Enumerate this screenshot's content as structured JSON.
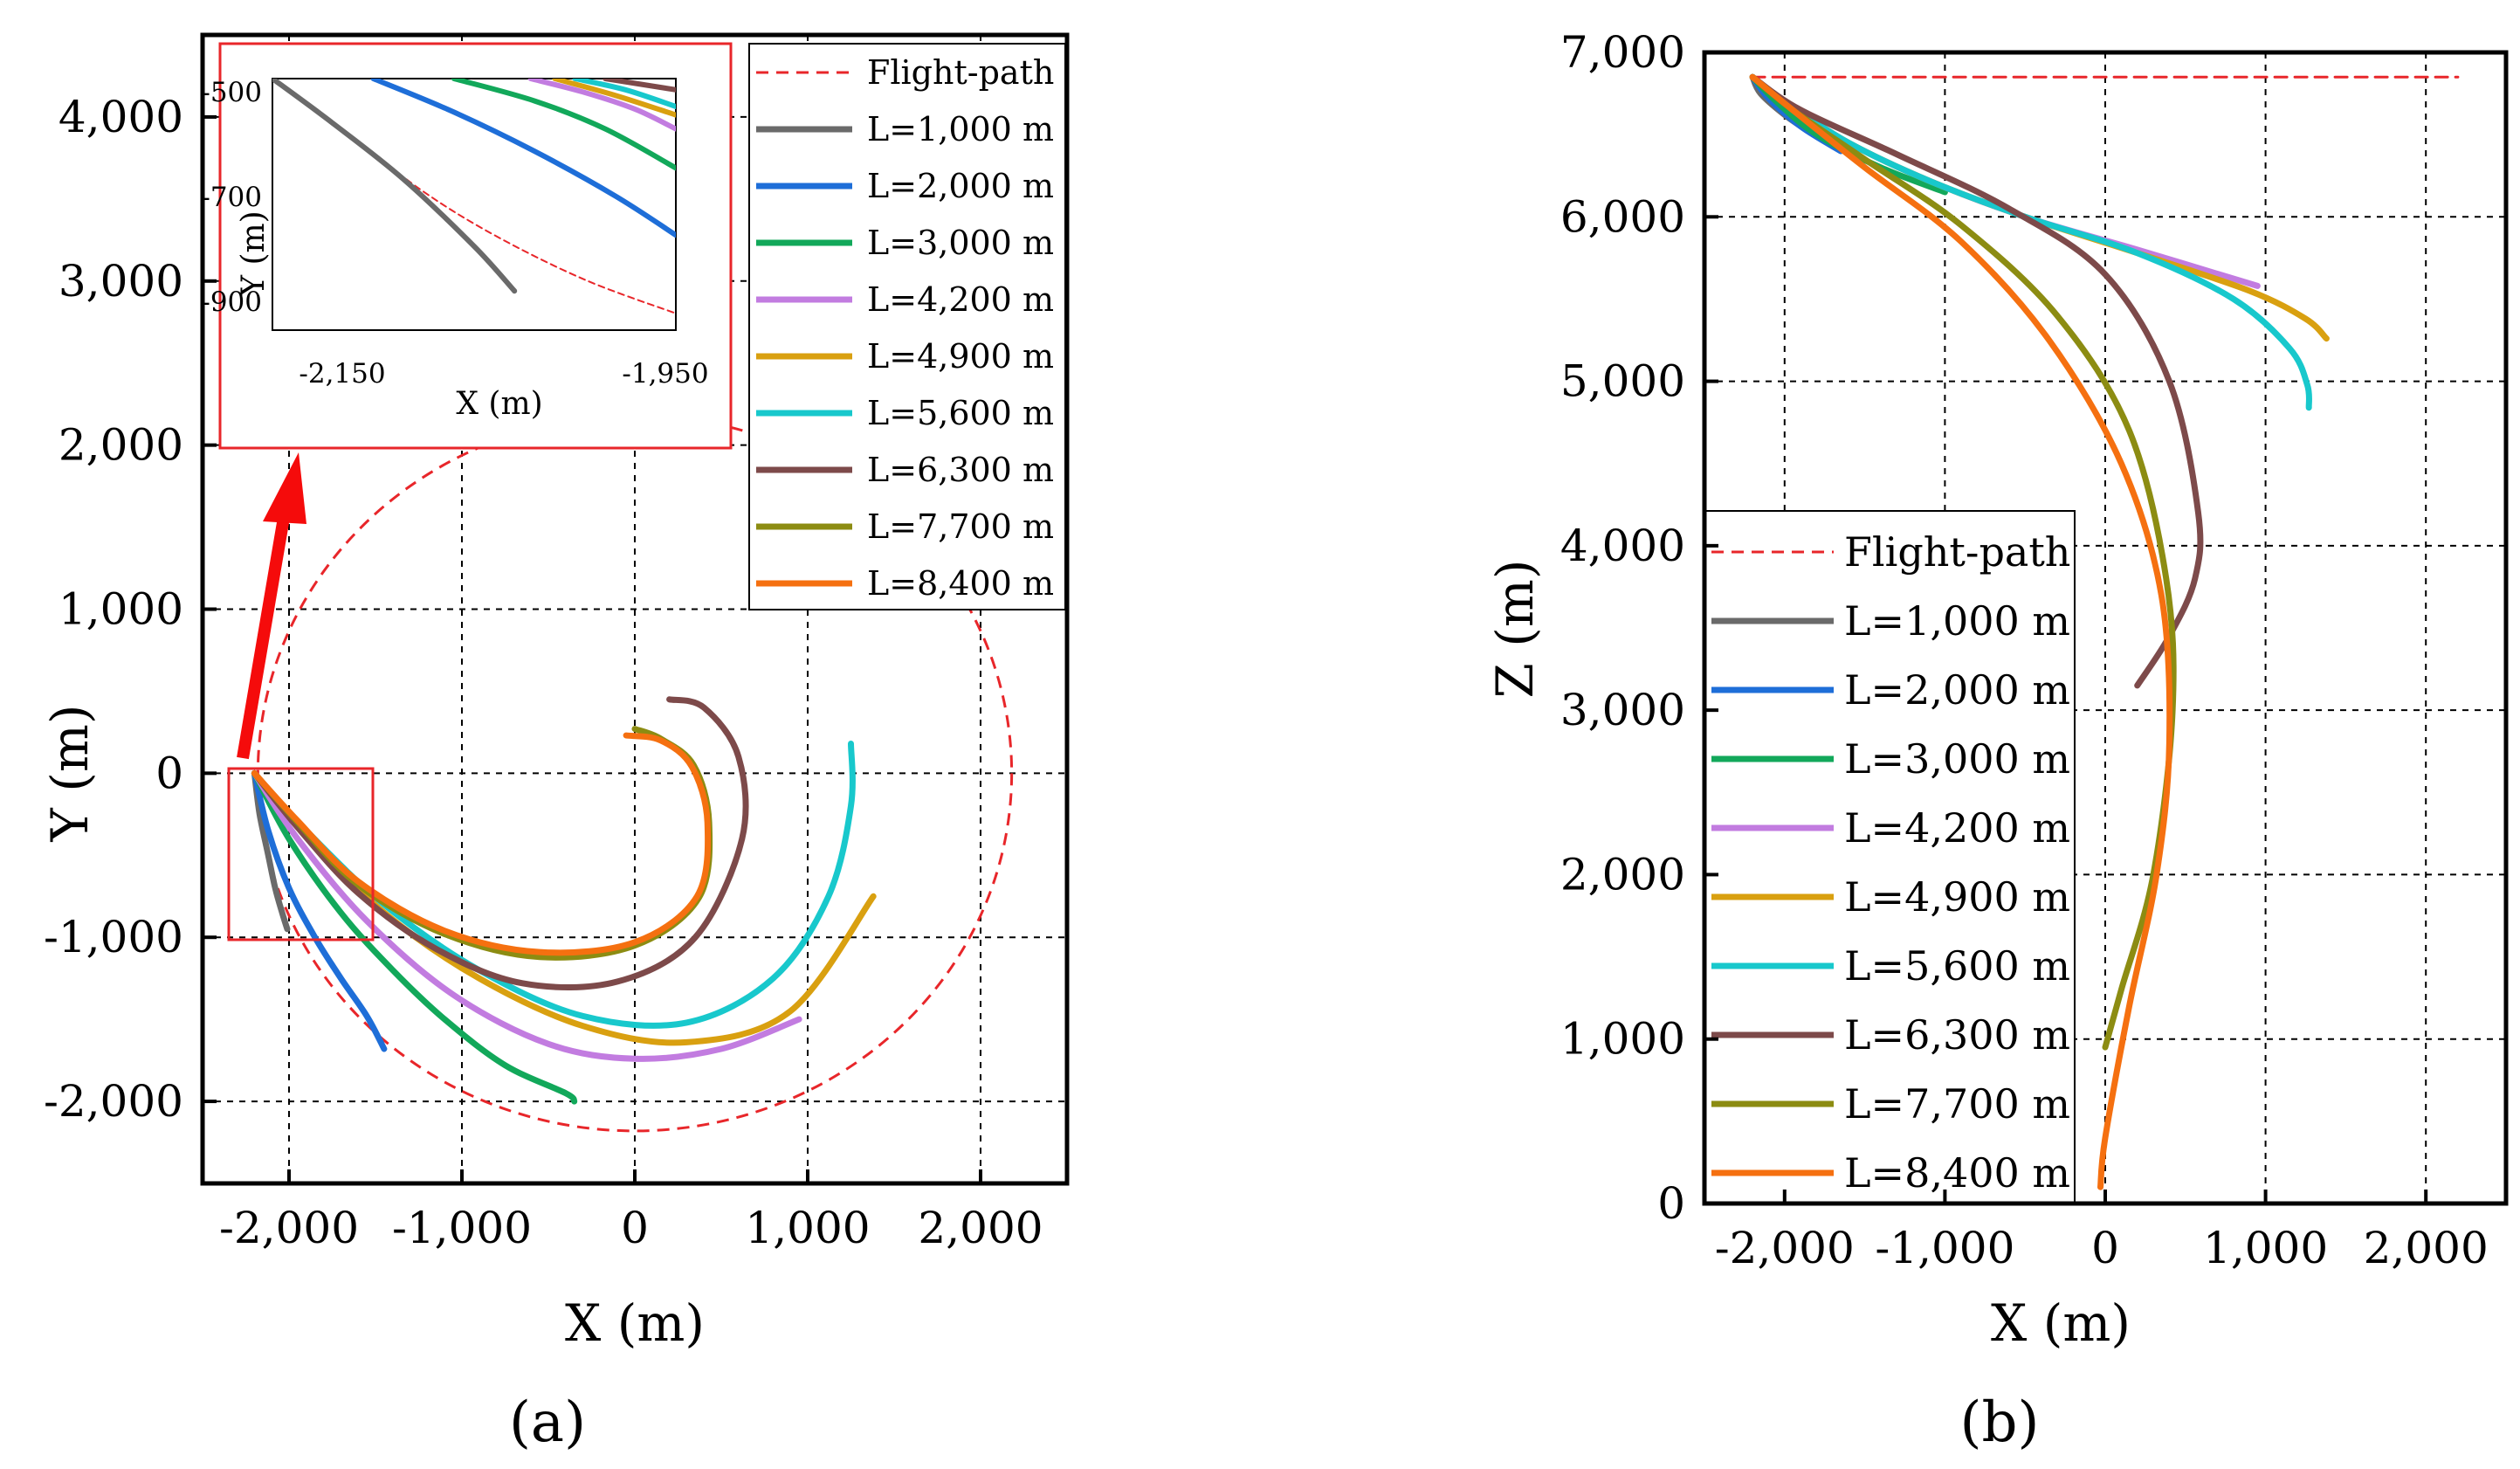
{
  "legend": [
    "Flight-path",
    "L=1,000 m",
    "L=2,000 m",
    "L=3,000 m",
    "L=4,200 m",
    "L=4,900 m",
    "L=5,600 m",
    "L=6,300 m",
    "L=7,700 m",
    "L=8,400 m"
  ],
  "colors": {
    "Flight-path": "#e8262a",
    "L=1,000 m": "#6a6a6a",
    "L=2,000 m": "#1e6ed8",
    "L=3,000 m": "#12a85a",
    "L=4,200 m": "#c27ce0",
    "L=4,900 m": "#d9a010",
    "L=5,600 m": "#18c8cc",
    "L=6,300 m": "#7d4a4a",
    "L=7,700 m": "#8c8c12",
    "L=8,400 m": "#f57010"
  },
  "chart_data": [
    {
      "type": "line",
      "xlabel": "X (m)",
      "ylabel": "Y (m)",
      "caption": "(a)",
      "xlim": [
        -2500,
        2500
      ],
      "ylim": [
        -2500,
        4500
      ],
      "xticks": [
        -2000,
        -1000,
        0,
        1000,
        2000
      ],
      "xtick_labels": [
        "-2,000",
        "-1,000",
        "0",
        "1,000",
        "2,000"
      ],
      "yticks": [
        -2000,
        -1000,
        0,
        1000,
        2000,
        3000,
        4000
      ],
      "ytick_labels": [
        "-2,000",
        "-1,000",
        "0",
        "1,000",
        "2,000",
        "3,000",
        "4,000"
      ],
      "grid": true,
      "legend_position": "top-right",
      "series": [
        {
          "name": "Flight-path",
          "dashed": true,
          "circle": {
            "cx": 0,
            "cy": 0,
            "r": 2180
          }
        },
        {
          "name": "L=1,000 m",
          "x": [
            -2200,
            -2170,
            -2120,
            -2080,
            -2040,
            -2010
          ],
          "y": [
            0,
            -250,
            -500,
            -700,
            -850,
            -950
          ]
        },
        {
          "name": "L=2,000 m",
          "x": [
            -2200,
            -2120,
            -2000,
            -1850,
            -1700,
            -1550,
            -1450
          ],
          "y": [
            0,
            -350,
            -700,
            -1000,
            -1250,
            -1480,
            -1680
          ]
        },
        {
          "name": "L=3,000 m",
          "x": [
            -2200,
            -2000,
            -1700,
            -1400,
            -1100,
            -750,
            -400,
            -350
          ],
          "y": [
            0,
            -400,
            -850,
            -1200,
            -1500,
            -1780,
            -1950,
            -2000
          ]
        },
        {
          "name": "L=4,200 m",
          "x": [
            -2200,
            -1950,
            -1550,
            -1050,
            -500,
            0,
            500,
            950
          ],
          "y": [
            0,
            -400,
            -900,
            -1350,
            -1650,
            -1740,
            -1680,
            -1500
          ]
        },
        {
          "name": "L=4,900 m",
          "x": [
            -2200,
            -1900,
            -1450,
            -900,
            -300,
            300,
            900,
            1380
          ],
          "y": [
            0,
            -380,
            -850,
            -1250,
            -1540,
            -1640,
            -1450,
            -750
          ]
        },
        {
          "name": "L=5,600 m",
          "x": [
            -2200,
            -1900,
            -1450,
            -900,
            -300,
            300,
            800,
            1120,
            1250,
            1250
          ],
          "y": [
            0,
            -350,
            -800,
            -1200,
            -1480,
            -1520,
            -1250,
            -750,
            -200,
            180
          ]
        },
        {
          "name": "L=6,300 m",
          "x": [
            -2200,
            -1950,
            -1600,
            -1150,
            -650,
            -100,
            350,
            620,
            600,
            400,
            200
          ],
          "y": [
            0,
            -330,
            -730,
            -1070,
            -1280,
            -1270,
            -1000,
            -400,
            100,
            400,
            450
          ]
        },
        {
          "name": "L=7,700 m",
          "x": [
            -2200,
            -1950,
            -1600,
            -1100,
            -550,
            0,
            370,
            430,
            340,
            150,
            0
          ],
          "y": [
            0,
            -300,
            -680,
            -980,
            -1120,
            -1050,
            -760,
            -300,
            50,
            210,
            270
          ]
        },
        {
          "name": "L=8,400 m",
          "x": [
            -2200,
            -1950,
            -1600,
            -1100,
            -550,
            0,
            360,
            420,
            330,
            150,
            -50
          ],
          "y": [
            0,
            -290,
            -660,
            -960,
            -1090,
            -1030,
            -750,
            -300,
            40,
            200,
            230
          ]
        }
      ],
      "inset": {
        "xlabel": "X (m)",
        "ylabel": "Y (m)",
        "xlim": [
          -2150,
          -1950
        ],
        "ylim": [
          -950,
          -500
        ],
        "xtick_labels": [
          "-2,150",
          "-1,950"
        ],
        "ytick_labels": [
          "-500",
          "-700",
          "-900"
        ]
      }
    },
    {
      "type": "line",
      "xlabel": "X (m)",
      "ylabel": "Z (m)",
      "caption": "(b)",
      "xlim": [
        -2500,
        2500
      ],
      "ylim": [
        0,
        7000
      ],
      "xticks": [
        -2000,
        -1000,
        0,
        1000,
        2000
      ],
      "xtick_labels": [
        "-2,000",
        "-1,000",
        "0",
        "1,000",
        "2,000"
      ],
      "yticks": [
        0,
        1000,
        2000,
        3000,
        4000,
        5000,
        6000,
        7000
      ],
      "ytick_labels": [
        "0",
        "1,000",
        "2,000",
        "3,000",
        "4,000",
        "5,000",
        "6,000",
        "7,000"
      ],
      "grid": true,
      "legend_position": "bottom-left",
      "series": [
        {
          "name": "Flight-path",
          "dashed": true,
          "x": [
            -2200,
            2200
          ],
          "y": [
            6850,
            6850
          ]
        },
        {
          "name": "L=1,000 m",
          "x": [
            -2200,
            -2150,
            -2000,
            -1850
          ],
          "y": [
            6850,
            6750,
            6620,
            6520
          ]
        },
        {
          "name": "L=2,000 m",
          "x": [
            -2200,
            -2100,
            -1900,
            -1650
          ],
          "y": [
            6850,
            6720,
            6550,
            6400
          ]
        },
        {
          "name": "L=3,000 m",
          "x": [
            -2200,
            -2050,
            -1800,
            -1400,
            -1000
          ],
          "y": [
            6850,
            6700,
            6500,
            6300,
            6150
          ]
        },
        {
          "name": "L=4,200 m",
          "x": [
            -2200,
            -2000,
            -1600,
            -1100,
            -500,
            200,
            950
          ],
          "y": [
            6850,
            6700,
            6450,
            6220,
            6000,
            5800,
            5580
          ]
        },
        {
          "name": "L=4,900 m",
          "x": [
            -2200,
            -2000,
            -1600,
            -1100,
            -500,
            200,
            900,
            1250,
            1380
          ],
          "y": [
            6850,
            6700,
            6450,
            6220,
            6000,
            5780,
            5550,
            5380,
            5260
          ]
        },
        {
          "name": "L=5,600 m",
          "x": [
            -2200,
            -2000,
            -1600,
            -1100,
            -500,
            200,
            800,
            1150,
            1260,
            1270
          ],
          "y": [
            6850,
            6700,
            6450,
            6220,
            6000,
            5780,
            5500,
            5200,
            4980,
            4840
          ]
        },
        {
          "name": "L=6,300 m",
          "x": [
            -2200,
            -1900,
            -1300,
            -600,
            0,
            400,
            580,
            560,
            400,
            200
          ],
          "y": [
            6850,
            6650,
            6380,
            6050,
            5650,
            5000,
            4200,
            3800,
            3450,
            3150
          ]
        },
        {
          "name": "L=7,700 m",
          "x": [
            -2200,
            -1950,
            -1500,
            -900,
            -300,
            150,
            380,
            420,
            300,
            100,
            0
          ],
          "y": [
            6850,
            6650,
            6350,
            5950,
            5400,
            4700,
            3800,
            3000,
            2000,
            1300,
            950
          ]
        },
        {
          "name": "L=8,400 m",
          "x": [
            -2200,
            -1950,
            -1500,
            -900,
            -350,
            100,
            350,
            400,
            320,
            150,
            0,
            -30
          ],
          "y": [
            6850,
            6650,
            6300,
            5850,
            5250,
            4500,
            3700,
            2800,
            2000,
            1200,
            400,
            100
          ]
        }
      ]
    }
  ]
}
